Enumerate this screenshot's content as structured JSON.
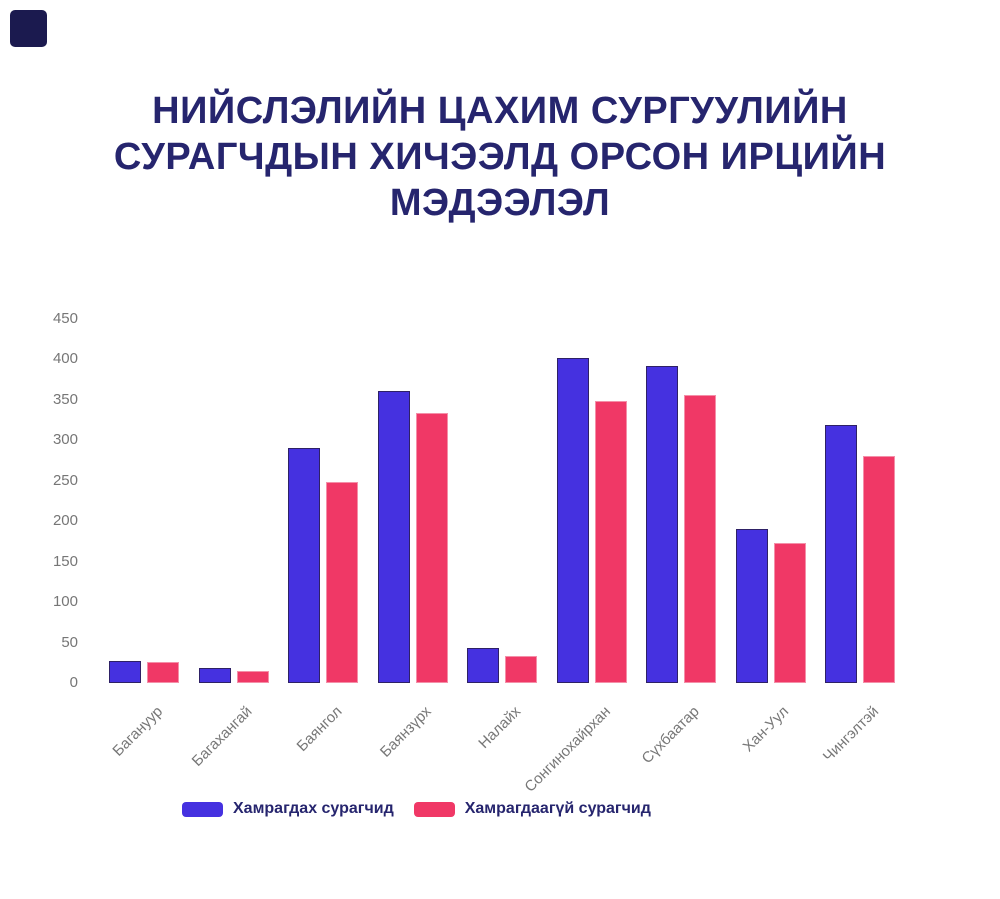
{
  "brand_square": {
    "color": "#1B1A4F"
  },
  "title": {
    "lines": [
      "НИЙСЛЭЛИЙН ЦАХИМ СУРГУУЛИЙН",
      "СУРАГЧДЫН ХИЧЭЭЛД ОРСОН ИРЦИЙН",
      "МЭДЭЭЛЭЛ"
    ],
    "color": "#26256E"
  },
  "chart_data": {
    "type": "bar",
    "title": "НИЙСЛЭЛИЙН ЦАХИМ СУРГУУЛИЙН СУРАГЧДЫН ХИЧЭЭЛД ОРСОН ИРЦИЙН МЭДЭЭЛЭЛ",
    "categories": [
      "Багануур",
      "Багахангай",
      "Баянгол",
      "Баянзүрх",
      "Налайх",
      "Сонгинохайрхан",
      "Сүхбаатар",
      "Хан-Уул",
      "Чингэлтэй"
    ],
    "series": [
      {
        "name": "Хамрагдах сурагчид",
        "color": "#4531E0",
        "values": [
          27,
          19,
          291,
          361,
          43,
          402,
          392,
          190,
          319
        ]
      },
      {
        "name": "Хамрагдаагүй сурагчид",
        "color": "#F03866",
        "values": [
          26,
          15,
          248,
          334,
          33,
          349,
          356,
          173,
          281
        ]
      }
    ],
    "xlabel": "",
    "ylabel": "",
    "ylim": [
      0,
      450
    ],
    "yticks": [
      0,
      50,
      100,
      150,
      200,
      250,
      300,
      350,
      400,
      450
    ],
    "grid": false,
    "legend_position": "bottom",
    "x_tick_rotation": -45,
    "axis_label_color": "#777777"
  },
  "legend": {
    "items": [
      {
        "label": "Хамрагдах сурагчид",
        "color": "#4531E0"
      },
      {
        "label": "Хамрагдаагүй сурагчид",
        "color": "#F03866"
      }
    ]
  }
}
